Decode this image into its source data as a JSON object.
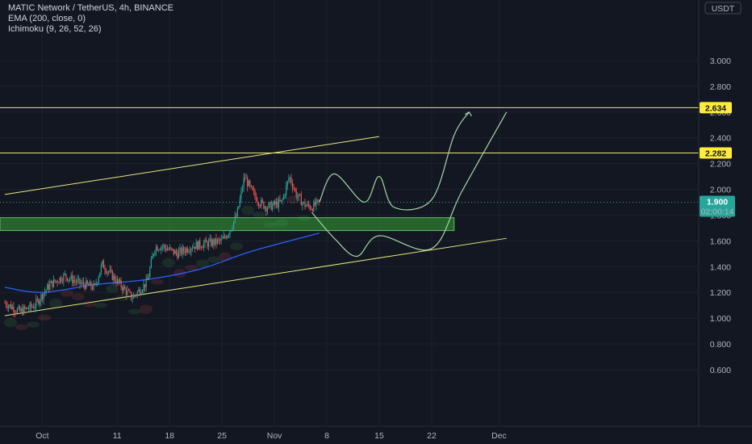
{
  "header": {
    "symbol_line": "MATIC Network / TetherUS, 4h, BINANCE",
    "indicators": [
      "EMA (200, close, 0)",
      "Ichimoku (9, 26, 52, 26)"
    ]
  },
  "currency_label": "USDT",
  "colors": {
    "background": "#131722",
    "grid": "#1e222d",
    "up_candle": "#26a69a",
    "down_candle": "#ef5350",
    "ema": "#2962ff",
    "level_line": "#e8e87a",
    "zone_fill": "#2e7d32",
    "projection": "#a5d6a7",
    "current_price_badge": "#26a69a"
  },
  "chart_data": {
    "type": "candlestick",
    "interval": "4h",
    "x_axis_ticks": [
      "Oct",
      "11",
      "18",
      "25",
      "Nov",
      "8",
      "15",
      "22",
      "Dec"
    ],
    "y_axis": {
      "ticks": [
        "0.600",
        "0.800",
        "1.000",
        "1.200",
        "1.400",
        "1.600",
        "1.800",
        "2.000",
        "2.200",
        "2.400",
        "2.600",
        "2.800",
        "3.000"
      ],
      "range": [
        0.5,
        3.1
      ]
    },
    "horizontal_levels": [
      {
        "value": 2.634,
        "label": "2.634"
      },
      {
        "value": 2.282,
        "label": "2.282"
      }
    ],
    "current_price": {
      "value": 1.9,
      "label": "1.900",
      "countdown": "02:00:14"
    },
    "support_zone": {
      "from": 1.68,
      "to": 1.78
    },
    "trend_channel": {
      "upper": [
        {
          "date": "Sep 26",
          "y": 1.96
        },
        {
          "date": "Nov 15",
          "y": 2.41
        }
      ],
      "lower": [
        {
          "date": "Sep 26",
          "y": 1.02
        },
        {
          "date": "Dec 02",
          "y": 1.62
        }
      ]
    },
    "ohlc_path": [
      {
        "date": "Sep 26",
        "close": 1.12
      },
      {
        "date": "Sep 28",
        "close": 1.05
      },
      {
        "date": "Sep 30",
        "close": 1.1
      },
      {
        "date": "Oct 02",
        "close": 1.26
      },
      {
        "date": "Oct 04",
        "close": 1.33
      },
      {
        "date": "Oct 06",
        "close": 1.27
      },
      {
        "date": "Oct 08",
        "close": 1.24
      },
      {
        "date": "Oct 09",
        "close": 1.42
      },
      {
        "date": "Oct 10",
        "close": 1.35
      },
      {
        "date": "Oct 12",
        "close": 1.22
      },
      {
        "date": "Oct 13",
        "close": 1.16
      },
      {
        "date": "Oct 15",
        "close": 1.28
      },
      {
        "date": "Oct 16",
        "close": 1.55
      },
      {
        "date": "Oct 17",
        "close": 1.56
      },
      {
        "date": "Oct 19",
        "close": 1.5
      },
      {
        "date": "Oct 21",
        "close": 1.56
      },
      {
        "date": "Oct 23",
        "close": 1.58
      },
      {
        "date": "Oct 25",
        "close": 1.6
      },
      {
        "date": "Oct 26",
        "close": 1.68
      },
      {
        "date": "Oct 27",
        "close": 1.8
      },
      {
        "date": "Oct 28",
        "close": 2.1
      },
      {
        "date": "Oct 29",
        "close": 1.98
      },
      {
        "date": "Oct 30",
        "close": 1.9
      },
      {
        "date": "Oct 31",
        "close": 1.86
      },
      {
        "date": "Nov 02",
        "close": 1.9
      },
      {
        "date": "Nov 03",
        "close": 2.1
      },
      {
        "date": "Nov 04",
        "close": 1.95
      },
      {
        "date": "Nov 05",
        "close": 1.88
      },
      {
        "date": "Nov 06",
        "close": 1.86
      },
      {
        "date": "Nov 07",
        "close": 1.9
      }
    ],
    "ema_path": [
      {
        "date": "Sep 26",
        "y": 1.24
      },
      {
        "date": "Oct 01",
        "y": 1.2
      },
      {
        "date": "Oct 08",
        "y": 1.26
      },
      {
        "date": "Oct 15",
        "y": 1.3
      },
      {
        "date": "Oct 22",
        "y": 1.38
      },
      {
        "date": "Oct 29",
        "y": 1.52
      },
      {
        "date": "Nov 07",
        "y": 1.66
      }
    ],
    "projection_paths": [
      [
        {
          "date": "Nov 07",
          "y": 1.9
        },
        {
          "date": "Nov 09",
          "y": 2.12
        },
        {
          "date": "Nov 13",
          "y": 1.9
        },
        {
          "date": "Nov 15",
          "y": 2.1
        },
        {
          "date": "Nov 17",
          "y": 1.86
        },
        {
          "date": "Nov 22",
          "y": 1.92
        },
        {
          "date": "Nov 25",
          "y": 2.42
        },
        {
          "date": "Nov 27",
          "y": 2.6
        }
      ],
      [
        {
          "date": "Nov 06",
          "y": 1.82
        },
        {
          "date": "Nov 09",
          "y": 1.62
        },
        {
          "date": "Nov 12",
          "y": 1.48
        },
        {
          "date": "Nov 15",
          "y": 1.64
        },
        {
          "date": "Nov 22",
          "y": 1.54
        },
        {
          "date": "Nov 26",
          "y": 1.98
        },
        {
          "date": "Dec 02",
          "y": 2.6
        }
      ]
    ]
  }
}
